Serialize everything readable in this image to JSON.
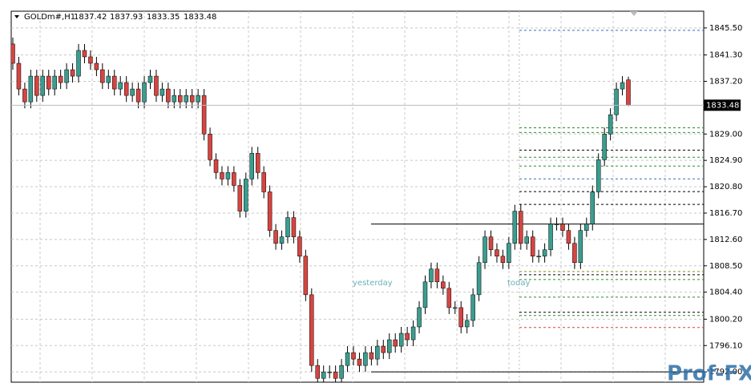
{
  "chart_data": {
    "type": "candlestick",
    "symbol": "GOLDm#,H1",
    "up_color": "#3a9e8f",
    "down_color": "#d64541",
    "grid": true,
    "ylim": [
      1790.4,
      1848.1
    ],
    "yticks": [
      {
        "value": 1845.5,
        "label": "1845.50"
      },
      {
        "value": 1841.3,
        "label": "1841.30"
      },
      {
        "value": 1837.2,
        "label": "1837.20"
      },
      {
        "value": 1829.0,
        "label": "1829.00"
      },
      {
        "value": 1824.9,
        "label": "1824.90"
      },
      {
        "value": 1820.8,
        "label": "1820.80"
      },
      {
        "value": 1816.7,
        "label": "1816.70"
      },
      {
        "value": 1812.6,
        "label": "1812.60"
      },
      {
        "value": 1808.5,
        "label": "1808.50"
      },
      {
        "value": 1804.4,
        "label": "1804.40"
      },
      {
        "value": 1800.2,
        "label": "1800.20"
      },
      {
        "value": 1796.1,
        "label": "1796.10"
      },
      {
        "value": 1792.0,
        "label": "1792.00"
      }
    ],
    "open": [
      1843,
      1840,
      1836,
      1834,
      1838,
      1835,
      1838,
      1836,
      1838,
      1837,
      1839,
      1838,
      1842,
      1841,
      1840,
      1839,
      1837,
      1838,
      1836,
      1837,
      1835,
      1836,
      1834,
      1837,
      1838,
      1835,
      1836,
      1834,
      1835,
      1834,
      1835,
      1834,
      1835,
      1829,
      1825,
      1823,
      1822,
      1823,
      1821,
      1817,
      1822,
      1826,
      1823,
      1820,
      1814,
      1812,
      1813,
      1816,
      1813,
      1810,
      1804,
      1793,
      1791,
      1792,
      1792,
      1791,
      1793,
      1795,
      1794,
      1793,
      1795,
      1794,
      1796,
      1795,
      1797,
      1796,
      1798,
      1797,
      1799,
      1802,
      1806,
      1808,
      1806,
      1805,
      1802,
      1802,
      1799,
      1800,
      1804,
      1809,
      1813,
      1811,
      1810,
      1809,
      1812,
      1817,
      1812,
      1813,
      1810,
      1810,
      1811,
      1815,
      1815,
      1814,
      1812,
      1809,
      1814,
      1815,
      1820,
      1825,
      1829,
      1832,
      1836,
      1837.42
    ],
    "high": [
      1844,
      1841,
      1837,
      1839,
      1839,
      1839,
      1839,
      1839,
      1839,
      1840,
      1840,
      1843,
      1843,
      1842,
      1841,
      1840,
      1839,
      1839,
      1838,
      1838,
      1837,
      1837,
      1838,
      1839,
      1839,
      1837,
      1837,
      1836,
      1836,
      1836,
      1836,
      1836,
      1836,
      1830,
      1826,
      1824,
      1824,
      1824,
      1822,
      1823,
      1827,
      1827,
      1824,
      1821,
      1815,
      1814,
      1817,
      1817,
      1814,
      1811,
      1805,
      1794,
      1793,
      1793,
      1793,
      1794,
      1796,
      1796,
      1795,
      1796,
      1796,
      1797,
      1797,
      1798,
      1798,
      1799,
      1799,
      1800,
      1803,
      1807,
      1809,
      1809,
      1807,
      1806,
      1803,
      1803,
      1801,
      1805,
      1810,
      1814,
      1814,
      1812,
      1811,
      1813,
      1818,
      1818,
      1814,
      1814,
      1811,
      1812,
      1816,
      1816,
      1816,
      1815,
      1813,
      1815,
      1816,
      1821,
      1826,
      1830,
      1833,
      1837,
      1838,
      1837.93
    ],
    "low": [
      1839,
      1835,
      1833,
      1833,
      1834,
      1834,
      1835,
      1835,
      1836,
      1836,
      1837,
      1837,
      1840,
      1839,
      1838,
      1836,
      1836,
      1835,
      1835,
      1834,
      1834,
      1833,
      1833,
      1836,
      1834,
      1834,
      1833,
      1833,
      1833,
      1833,
      1833,
      1833,
      1828,
      1824,
      1822,
      1821,
      1821,
      1820,
      1816,
      1816,
      1821,
      1822,
      1819,
      1813,
      1811,
      1811,
      1812,
      1812,
      1809,
      1803,
      1792,
      1790,
      1790,
      1791,
      1790,
      1790,
      1792,
      1793,
      1792,
      1792,
      1793,
      1793,
      1794,
      1794,
      1795,
      1795,
      1796,
      1796,
      1798,
      1801,
      1805,
      1805,
      1804,
      1801,
      1801,
      1798,
      1798,
      1799,
      1803,
      1808,
      1810,
      1809,
      1808,
      1808,
      1811,
      1811,
      1811,
      1809,
      1809,
      1809,
      1810,
      1814,
      1813,
      1811,
      1808,
      1808,
      1813,
      1814,
      1819,
      1824,
      1828,
      1831,
      1835,
      1833.35
    ],
    "close": [
      1840,
      1836,
      1834,
      1838,
      1835,
      1838,
      1836,
      1838,
      1837,
      1839,
      1838,
      1842,
      1841,
      1840,
      1839,
      1837,
      1838,
      1836,
      1837,
      1835,
      1836,
      1834,
      1837,
      1838,
      1835,
      1836,
      1834,
      1835,
      1834,
      1835,
      1834,
      1835,
      1829,
      1825,
      1823,
      1822,
      1823,
      1821,
      1817,
      1822,
      1826,
      1823,
      1820,
      1814,
      1812,
      1813,
      1816,
      1813,
      1810,
      1804,
      1793,
      1791,
      1792,
      1792,
      1791,
      1793,
      1795,
      1794,
      1793,
      1795,
      1794,
      1796,
      1795,
      1797,
      1796,
      1798,
      1797,
      1799,
      1802,
      1806,
      1808,
      1806,
      1805,
      1802,
      1802,
      1799,
      1800,
      1804,
      1809,
      1813,
      1811,
      1810,
      1809,
      1812,
      1817,
      1812,
      1813,
      1810,
      1810,
      1811,
      1815,
      1815,
      1814,
      1812,
      1809,
      1814,
      1815,
      1820,
      1825,
      1829,
      1832,
      1836,
      1837,
      1833.48
    ],
    "levels": [
      {
        "value": 1845.13,
        "color": "#3b6fc4",
        "style": "dashed"
      },
      {
        "value": 1829.97,
        "color": "#2e8b2e",
        "style": "dashed"
      },
      {
        "value": 1829.23,
        "color": "#2e8b2e",
        "style": "dashed"
      },
      {
        "value": 1826.5,
        "color": "#000000",
        "style": "dashed"
      },
      {
        "value": 1825.38,
        "color": "#2e8b2e",
        "style": "dashed"
      },
      {
        "value": 1824.01,
        "color": "#2e8b2e",
        "style": "dashed"
      },
      {
        "value": 1822.03,
        "color": "#3b6fc4",
        "style": "dashed"
      },
      {
        "value": 1820.04,
        "color": "#000000",
        "style": "dashed"
      },
      {
        "value": 1818.05,
        "color": "#000000",
        "style": "dashed"
      },
      {
        "value": 1815.0,
        "color": "#000000",
        "style": "solid"
      },
      {
        "value": 1807.61,
        "color": "#8a8a20",
        "style": "dashed"
      },
      {
        "value": 1807.11,
        "color": "#000000",
        "style": "dashed"
      },
      {
        "value": 1806.37,
        "color": "#2e8b2e",
        "style": "dashed"
      },
      {
        "value": 1803.63,
        "color": "#2e8b2e",
        "style": "dashed"
      },
      {
        "value": 1801.27,
        "color": "#000000",
        "style": "dashed"
      },
      {
        "value": 1800.78,
        "color": "#2e8b2e",
        "style": "dashed"
      },
      {
        "value": 1798.91,
        "color": "#d64541",
        "style": "dashed"
      },
      {
        "value": 1792.0,
        "color": "#000000",
        "style": "solid"
      }
    ],
    "annotations": [
      "yesterday",
      "today"
    ],
    "watermark": "Prof-FX"
  }
}
